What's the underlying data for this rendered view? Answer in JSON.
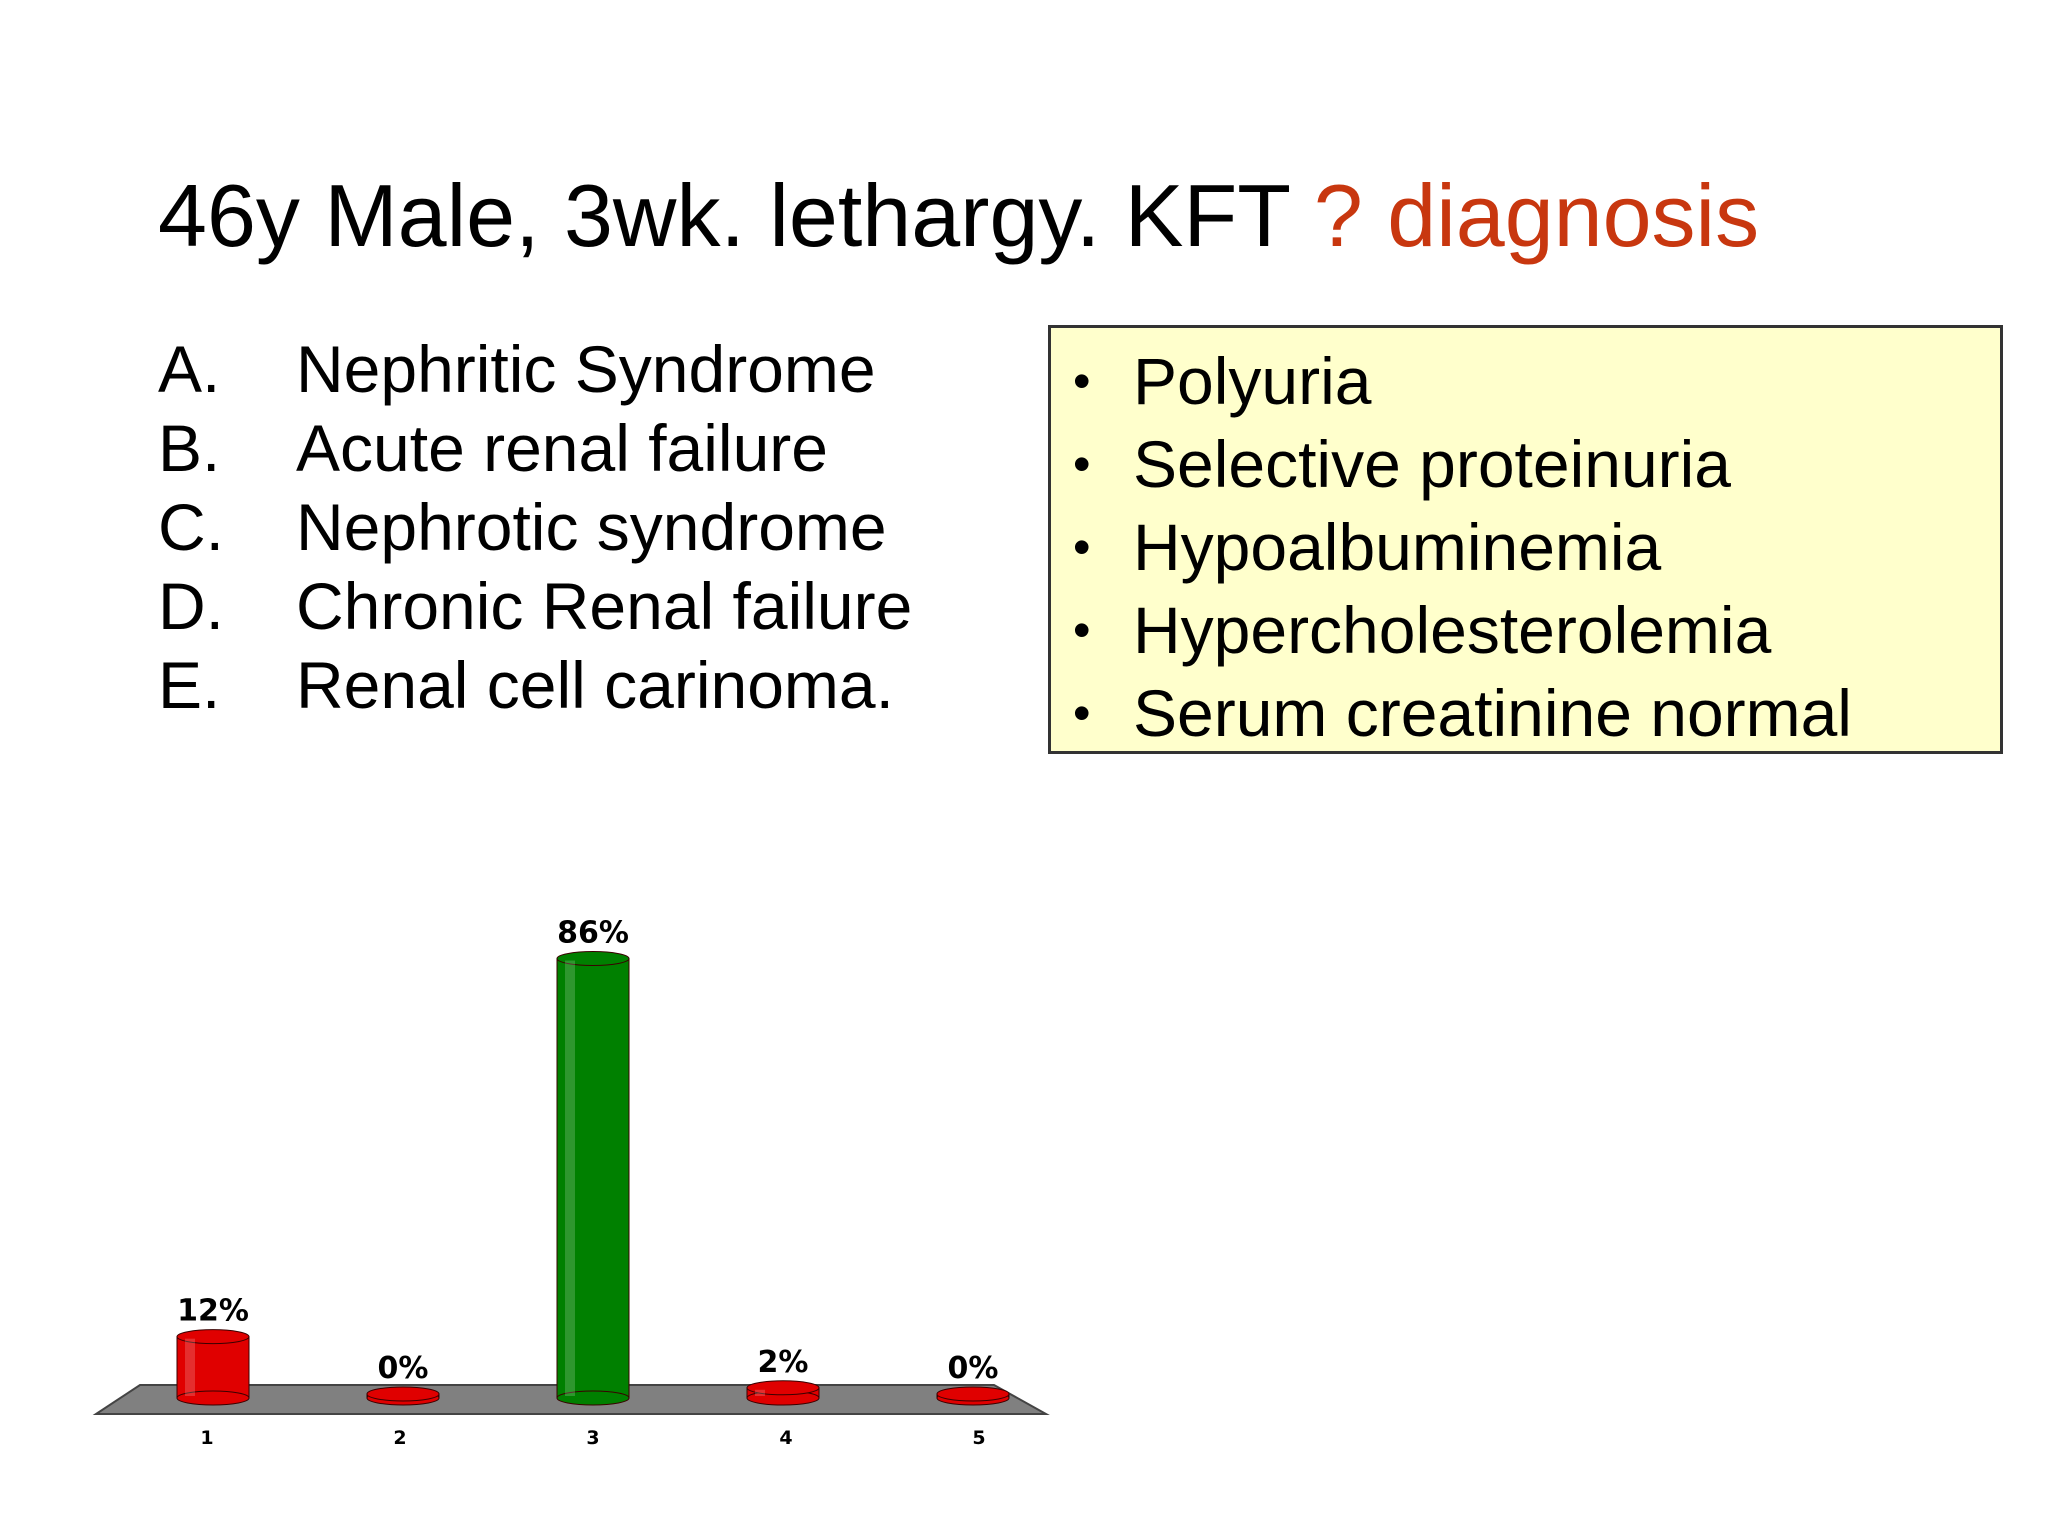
{
  "title": {
    "main": "46y Male, 3wk. lethargy. KFT",
    "accent": "? diagnosis"
  },
  "options": [
    {
      "letter": "A.",
      "text": "Nephritic Syndrome"
    },
    {
      "letter": "B.",
      "text": "Acute renal failure"
    },
    {
      "letter": "C.",
      "text": "Nephrotic syndrome"
    },
    {
      "letter": "D.",
      "text": "Chronic Renal failure"
    },
    {
      "letter": "E.",
      "text": "Renal cell carinoma."
    }
  ],
  "findings": {
    "bullet": "•",
    "items": [
      "Polyuria",
      "Selective proteinuria",
      "Hypoalbuminemia",
      "Hypercholesterolemia",
      "Serum creatinine normal"
    ]
  },
  "colors": {
    "accent": "#c8370f",
    "box_fill": "#ffffcc",
    "bar_default": "#e00000",
    "bar_highlight": "#008000",
    "floor": "#808080"
  },
  "chart_data": {
    "type": "bar",
    "categories": [
      "1",
      "2",
      "3",
      "4",
      "5"
    ],
    "values": [
      12,
      0,
      86,
      2,
      0
    ],
    "labels": [
      "12%",
      "0%",
      "86%",
      "2%",
      "0%"
    ],
    "highlight_index": 2,
    "ylim": [
      0,
      100
    ],
    "grid": false,
    "legend": false
  }
}
